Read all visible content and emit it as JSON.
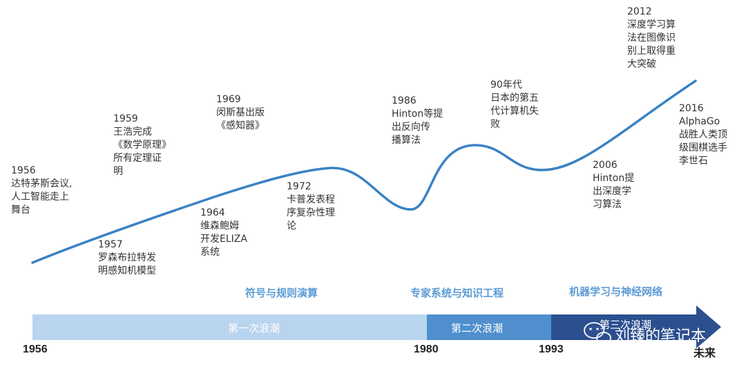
{
  "events": [
    {
      "lines": [
        "1956",
        "达特茅斯会议,",
        "人工智能走上",
        "舞台"
      ]
    },
    {
      "lines": [
        "1957",
        "罗森布拉特发",
        "明感知机模型"
      ]
    },
    {
      "lines": [
        "1959",
        "王浩完成",
        "《数学原理》",
        "所有定理证",
        "明"
      ]
    },
    {
      "lines": [
        "1964",
        "维森鲍姆",
        "开发ELIZA",
        "系统"
      ]
    },
    {
      "lines": [
        "1969",
        "闵斯基出版",
        "《感知器》"
      ]
    },
    {
      "lines": [
        "1972",
        "卡普发表程",
        "序复杂性理",
        "论"
      ]
    },
    {
      "lines": [
        "1986",
        "Hinton等提",
        "出反向传",
        "播算法"
      ]
    },
    {
      "lines": [
        "90年代",
        "日本的第五",
        "代计算机失",
        "败"
      ]
    },
    {
      "lines": [
        "2006",
        "Hinton提",
        "出深度学",
        "习算法"
      ]
    },
    {
      "lines": [
        "2012",
        "深度学习算",
        "法在图像识",
        "别上取得重",
        "大突破"
      ]
    },
    {
      "lines": [
        "2016",
        "AlphaGo",
        "战胜人类顶",
        "级围棋选手",
        "李世石"
      ]
    }
  ],
  "eras": [
    "符号与规则演算",
    "专家系统与知识工程",
    "机器学习与神经网络"
  ],
  "waves": [
    "第一次浪潮",
    "第二次浪潮",
    "第三次浪潮"
  ],
  "years": [
    "1956",
    "1980",
    "1993",
    "未来"
  ],
  "watermark": "刘臻的笔记本",
  "colors": {
    "curve": "#3a82c4",
    "wave1": "#b9d4ee",
    "wave2": "#4f8fce",
    "wave3": "#2c4f8f",
    "era_text": "#5b9bd5"
  }
}
